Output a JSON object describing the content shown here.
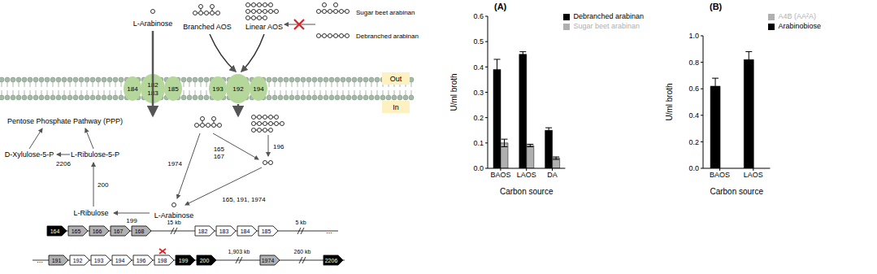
{
  "diagram": {
    "outside": "Out",
    "inside": "In",
    "substrates": {
      "l_arabinose_out": "L-Arabinose",
      "branched": "Branched AOS",
      "linear": "Linear AOS",
      "sugar_beet": "Sugar beet arabinan",
      "debranched": "Debranched arabinan"
    },
    "transporters": [
      {
        "left": "184",
        "center": [
          "182",
          "183"
        ],
        "right": "185"
      },
      {
        "left": "193",
        "center": [
          "192"
        ],
        "right": "194"
      }
    ],
    "metabolites": {
      "ppp": "Pentose Phosphate Pathway (PPP)",
      "xylulose": "D-Xylulose-5-P",
      "ribulose5p": "L-Ribulose-5-P",
      "ribulose": "L-Ribulose",
      "l_arabinose_in": "L-Arabinose"
    },
    "enzymes": {
      "e2206": "2206",
      "e200": "200",
      "e199": "199",
      "e1974": "1974",
      "e165_167": [
        "165",
        "167"
      ],
      "e196": "196",
      "e_combined": "165, 191, 1974"
    },
    "gene_cluster": [
      [
        {
          "type": "gene",
          "label": "164",
          "color": "#000000"
        },
        {
          "type": "gene",
          "label": "165",
          "color": "#b0b0b0"
        },
        {
          "type": "gene",
          "label": "166",
          "color": "#b0b0b0"
        },
        {
          "type": "gene",
          "label": "167",
          "color": "#b0b0b0"
        },
        {
          "type": "gene",
          "label": "168",
          "color": "#b0b0b0"
        },
        {
          "type": "gap",
          "label": "15 kb"
        },
        {
          "type": "gene",
          "label": "182",
          "color": "#ffffff"
        },
        {
          "type": "gene",
          "label": "183",
          "color": "#ffffff"
        },
        {
          "type": "gene",
          "label": "184",
          "color": "#ffffff"
        },
        {
          "type": "gene",
          "label": "185",
          "color": "#ffffff"
        },
        {
          "type": "gap",
          "label": "5 kb"
        },
        {
          "type": "dots",
          "label": "..."
        }
      ],
      [
        {
          "type": "dots",
          "label": "..."
        },
        {
          "type": "gene",
          "label": "191",
          "color": "#b0b0b0"
        },
        {
          "type": "gene",
          "label": "192",
          "color": "#ffffff"
        },
        {
          "type": "gene",
          "label": "193",
          "color": "#ffffff"
        },
        {
          "type": "gene",
          "label": "194",
          "color": "#ffffff"
        },
        {
          "type": "gene",
          "label": "196",
          "color": "#ffffff"
        },
        {
          "type": "gene",
          "label": "198",
          "color": "#ffffff",
          "deleted": true
        },
        {
          "type": "gene",
          "label": "199",
          "color": "#000000"
        },
        {
          "type": "gene",
          "label": "200",
          "color": "#000000"
        },
        {
          "type": "gap",
          "label": "1,903 kb"
        },
        {
          "type": "gene",
          "label": "1974",
          "color": "#b0b0b0"
        },
        {
          "type": "gap",
          "label": "260 kb"
        },
        {
          "type": "gene",
          "label": "2206",
          "color": "#000000"
        }
      ]
    ]
  },
  "chart_data": [
    {
      "type": "bar",
      "title": "(A)",
      "x_label": "Carbon source",
      "y_label": "U/ml broth",
      "categories": [
        "BAOS",
        "LAOS",
        "DA"
      ],
      "series": [
        {
          "name": "Debranched arabinan",
          "color": "#000000",
          "values": [
            0.39,
            0.45,
            0.15
          ],
          "errors": [
            0.04,
            0.01,
            0.01
          ]
        },
        {
          "name": "Sugar beet arabinan",
          "color": "#b0b0b0",
          "values": [
            0.1,
            0.09,
            0.04
          ],
          "errors": [
            0.015,
            0.005,
            0.005
          ]
        }
      ],
      "ylim": [
        0,
        0.6
      ],
      "yticks": [
        {
          "value": 0,
          "label": "0.0"
        },
        {
          "value": 0.1,
          "label": "0.1"
        },
        {
          "value": 0.2,
          "label": "0.2"
        },
        {
          "value": 0.3,
          "label": "0.3"
        },
        {
          "value": 0.4,
          "label": "0.4"
        },
        {
          "value": 0.5,
          "label": "0.5"
        },
        {
          "value": 0.6,
          "label": "0.6"
        }
      ],
      "legend": "top-right"
    },
    {
      "type": "bar",
      "title": "(B)",
      "x_label": "Carbon source",
      "y_label": "U/ml broth",
      "categories": [
        "BAOS",
        "LAOS"
      ],
      "series": [
        {
          "name": "Arabinobiose",
          "color": "#000000",
          "values": [
            0.62,
            0.82
          ],
          "errors": [
            0.06,
            0.06
          ]
        },
        {
          "name": "A4B (AA²A)",
          "color": "#b0b0b0",
          "values": [
            0,
            0
          ],
          "errors": [
            0,
            0
          ]
        }
      ],
      "ylim": [
        0,
        1.0
      ],
      "yticks": [
        {
          "value": 0,
          "label": "0.0"
        },
        {
          "value": 0.2,
          "label": "0.2"
        },
        {
          "value": 0.4,
          "label": "0.4"
        },
        {
          "value": 0.6,
          "label": "0.6"
        },
        {
          "value": 0.8,
          "label": "0.8"
        },
        {
          "value": 1.0,
          "label": "1.0"
        }
      ],
      "legend": "top-right"
    }
  ]
}
